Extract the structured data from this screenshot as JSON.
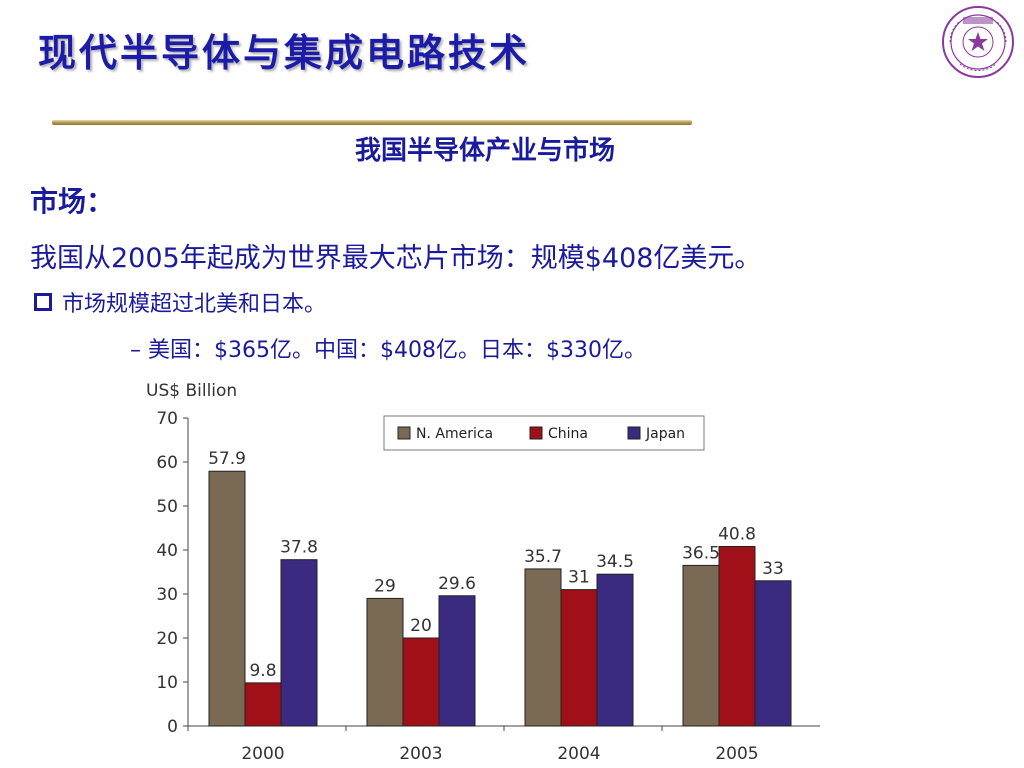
{
  "slide": {
    "title": "现代半导体与集成电路技术",
    "subtitle": "我国半导体产业与市场",
    "section_head": "市场：",
    "statement": "我国从2005年起成为世界最大芯片市场：规模$408亿美元。",
    "bullet": "市场规模超过北美和日本。",
    "sub_bullet": "– 美国：$365亿。中国：$408亿。日本：$330亿。",
    "logo_icon": "university-seal-icon"
  },
  "colors": {
    "title": "#1c1ca8",
    "text": "#1a1a9c",
    "n_america": "#7a6a54",
    "china": "#a01018",
    "japan": "#3a2a80"
  },
  "chart_data": {
    "type": "bar",
    "ylabel": "US$ Billion",
    "categories": [
      "2000",
      "2003",
      "2004",
      "2005"
    ],
    "series": [
      {
        "name": "N. America",
        "values": [
          57.9,
          29,
          35.7,
          36.5
        ],
        "labels": [
          "57.9",
          "29",
          "35.7",
          "36.5"
        ]
      },
      {
        "name": "China",
        "values": [
          9.8,
          20,
          31,
          40.8
        ],
        "labels": [
          "9.8",
          "20",
          "31",
          "40.8"
        ]
      },
      {
        "name": "Japan",
        "values": [
          37.8,
          29.6,
          34.5,
          33
        ],
        "labels": [
          "37.8",
          "29.6",
          "34.5",
          "33"
        ]
      }
    ],
    "ylim": [
      0,
      70
    ],
    "yticks": [
      "0",
      "10",
      "20",
      "30",
      "40",
      "50",
      "60",
      "70"
    ],
    "grid": false,
    "legend_position": "top-right"
  }
}
